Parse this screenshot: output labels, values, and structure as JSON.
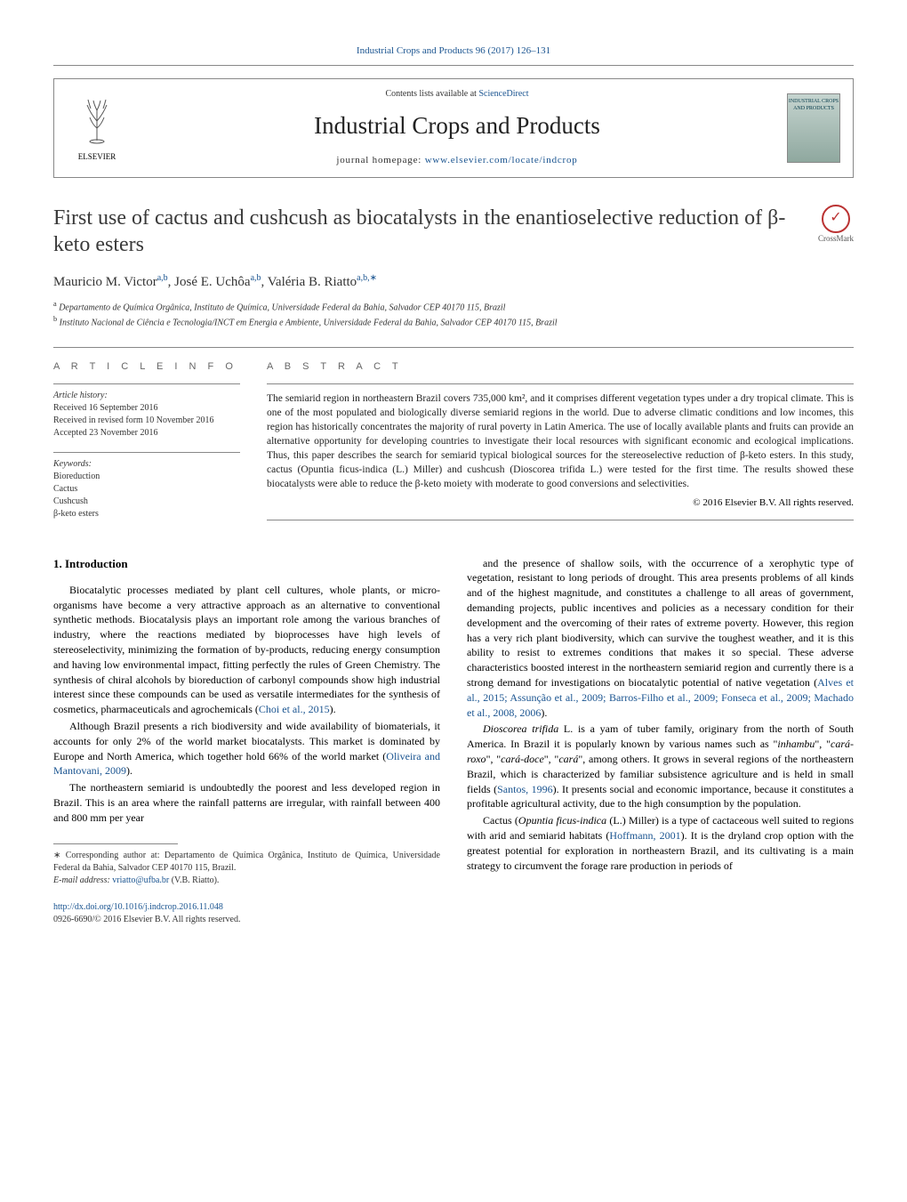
{
  "header": {
    "citation": "Industrial Crops and Products 96 (2017) 126–131",
    "contents_prefix": "Contents lists available at ",
    "contents_link": "ScienceDirect",
    "journal_name": "Industrial Crops and Products",
    "homepage_prefix": "journal homepage: ",
    "homepage_url": "www.elsevier.com/locate/indcrop",
    "elsevier_label": "ELSEVIER",
    "cover_line1": "INDUSTRIAL CROPS",
    "cover_line2": "AND PRODUCTS"
  },
  "crossmark_label": "CrossMark",
  "article": {
    "title": "First use of cactus and cushcush as biocatalysts in the enantioselective reduction of β-keto esters",
    "authors_html": "Mauricio M. Victor<sup>a,b</sup>, José E. Uchôa<sup>a,b</sup>, Valéria B. Riatto<sup>a,b,∗</sup>",
    "affiliations": [
      {
        "sup": "a",
        "text": "Departamento de Química Orgânica, Instituto de Química, Universidade Federal da Bahia, Salvador CEP 40170 115, Brazil"
      },
      {
        "sup": "b",
        "text": "Instituto Nacional de Ciência e Tecnologia/INCT em Energia e Ambiente, Universidade Federal da Bahia, Salvador CEP 40170 115, Brazil"
      }
    ]
  },
  "info": {
    "heading": "A R T I C L E   I N F O",
    "history_label": "Article history:",
    "received": "Received 16 September 2016",
    "revised": "Received in revised form 10 November 2016",
    "accepted": "Accepted 23 November 2016",
    "keywords_label": "Keywords:",
    "keywords": [
      "Bioreduction",
      "Cactus",
      "Cushcush",
      "β-keto esters"
    ]
  },
  "abstract": {
    "heading": "A B S T R A C T",
    "text": "The semiarid region in northeastern Brazil covers 735,000 km², and it comprises different vegetation types under a dry tropical climate. This is one of the most populated and biologically diverse semiarid regions in the world. Due to adverse climatic conditions and low incomes, this region has historically concentrates the majority of rural poverty in Latin America. The use of locally available plants and fruits can provide an alternative opportunity for developing countries to investigate their local resources with significant economic and ecological implications. Thus, this paper describes the search for semiarid typical biological sources for the stereoselective reduction of β-keto esters. In this study, cactus (Opuntia ficus-indica (L.) Miller) and cushcush (Dioscorea trifida L.) were tested for the first time. The results showed these biocatalysts were able to reduce the β-keto moiety with moderate to good conversions and selectivities.",
    "copyright": "© 2016 Elsevier B.V. All rights reserved."
  },
  "body": {
    "intro_heading": "1. Introduction",
    "left_paragraphs": [
      "Biocatalytic processes mediated by plant cell cultures, whole plants, or micro-organisms have become a very attractive approach as an alternative to conventional synthetic methods. Biocatalysis plays an important role among the various branches of industry, where the reactions mediated by bioprocesses have high levels of stereoselectivity, minimizing the formation of by-products, reducing energy consumption and having low environmental impact, fitting perfectly the rules of Green Chemistry. The synthesis of chiral alcohols by bioreduction of carbonyl compounds show high industrial interest since these compounds can be used as versatile intermediates for the synthesis of cosmetics, pharmaceuticals and agrochemicals (<a>Choi et al., 2015</a>).",
      "Although Brazil presents a rich biodiversity and wide availability of biomaterials, it accounts for only 2% of the world market biocatalysts. This market is dominated by Europe and North America, which together hold 66% of the world market (<a>Oliveira and Mantovani, 2009</a>).",
      "The northeastern semiarid is undoubtedly the poorest and less developed region in Brazil. This is an area where the rainfall patterns are irregular, with rainfall between 400 and 800 mm per year"
    ],
    "right_paragraphs": [
      "and the presence of shallow soils, with the occurrence of a xerophytic type of vegetation, resistant to long periods of drought. This area presents problems of all kinds and of the highest magnitude, and constitutes a challenge to all areas of government, demanding projects, public incentives and policies as a necessary condition for their development and the overcoming of their rates of extreme poverty. However, this region has a very rich plant biodiversity, which can survive the toughest weather, and it is this ability to resist to extremes conditions that makes it so special. These adverse characteristics boosted interest in the northeastern semiarid region and currently there is a strong demand for investigations on biocatalytic potential of native vegetation (<a>Alves et al., 2015; Assunção et al., 2009; Barros-Filho et al., 2009; Fonseca et al., 2009; Machado et al., 2008, 2006</a>).",
      "<em>Dioscorea trifida</em> L. is a yam of tuber family, originary from the north of South America. In Brazil it is popularly known by various names such as \"<em>inhambu</em>\", \"<em>cará-roxo</em>\", \"<em>cará-doce</em>\", \"<em>cará</em>\", among others. It grows in several regions of the northeastern Brazil, which is characterized by familiar subsistence agriculture and is held in small fields (<a>Santos, 1996</a>). It presents social and economic importance, because it constitutes a profitable agricultural activity, due to the high consumption by the population.",
      "Cactus (<em>Opuntia ficus-indica</em> (L.) Miller) is a type of cactaceous well suited to regions with arid and semiarid habitats (<a>Hoffmann, 2001</a>). It is the dryland crop option with the greatest potential for exploration in northeastern Brazil, and its cultivating is a main strategy to circumvent the forage rare production in periods of"
    ]
  },
  "footnotes": {
    "corresponding": "∗ Corresponding author at: Departamento de Química Orgânica, Instituto de Química, Universidade Federal da Bahia, Salvador CEP 40170 115, Brazil.",
    "email_label": "E-mail address: ",
    "email": "vriatto@ufba.br",
    "email_suffix": " (V.B. Riatto)."
  },
  "doi": {
    "url": "http://dx.doi.org/10.1016/j.indcrop.2016.11.048",
    "issn": "0926-6690/© 2016 Elsevier B.V. All rights reserved."
  },
  "colors": {
    "link": "#1a5490",
    "text": "#000000",
    "muted": "#666666",
    "border": "#888888"
  },
  "typography": {
    "body_pt": 12,
    "title_pt": 24,
    "journal_pt": 27,
    "abstract_pt": 11.5,
    "small_pt": 10
  }
}
